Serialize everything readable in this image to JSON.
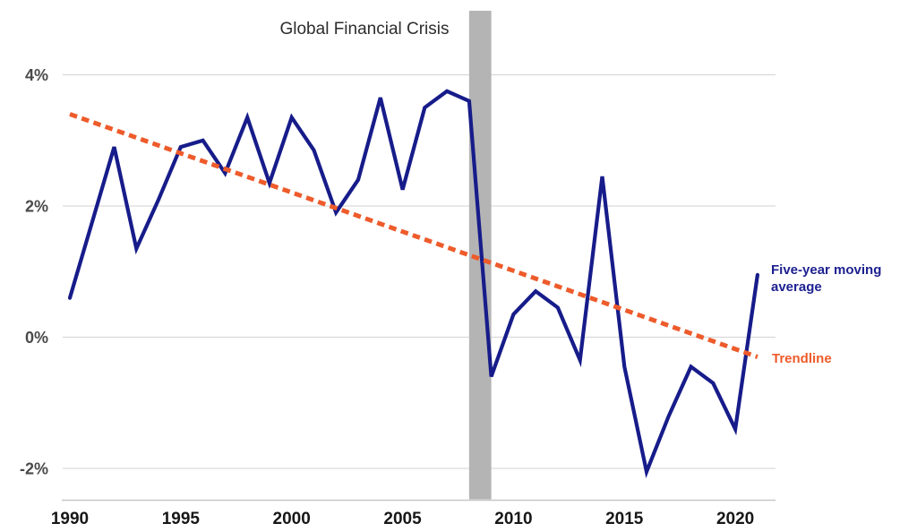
{
  "annotation": {
    "label": "Global Financial Crisis"
  },
  "legend": {
    "moving_average": {
      "lines": [
        "Five-year moving",
        "average"
      ],
      "color": "#1d2190"
    },
    "trendline": {
      "label": "Trendline",
      "color": "#ee5b2b"
    }
  },
  "axes": {
    "y_tick_labels": [
      "4%",
      "2%",
      "0%",
      "-2%"
    ],
    "x_tick_labels": [
      "1990",
      "1995",
      "2000",
      "2005",
      "2010",
      "2015",
      "2020"
    ]
  },
  "colors": {
    "line": "#171c8a",
    "trend": "#ee5b2b",
    "band": "#b4b4b4",
    "grid": "#d9d9d9",
    "axis": "#c7c7c7",
    "y_tick_text": "#4a4a4a",
    "x_tick_text": "#171717",
    "title_text": "#2d2d2d"
  },
  "chart_data": {
    "type": "line",
    "title": "Global Financial Crisis",
    "xlabel": "",
    "ylabel": "",
    "grid": true,
    "xlim": [
      1989.6,
      2021.9
    ],
    "ylim": [
      -2.5,
      5.0
    ],
    "x": [
      1990,
      1991,
      1992,
      1993,
      1994,
      1995,
      1996,
      1997,
      1998,
      1999,
      2000,
      2001,
      2002,
      2003,
      2004,
      2005,
      2006,
      2007,
      2008,
      2009,
      2010,
      2011,
      2012,
      2013,
      2014,
      2015,
      2016,
      2017,
      2018,
      2019,
      2020,
      2021
    ],
    "x_ticks": [
      1990,
      1995,
      2000,
      2005,
      2010,
      2015,
      2020
    ],
    "y_ticks": [
      {
        "label": "4%",
        "value": 4
      },
      {
        "label": "2%",
        "value": 2
      },
      {
        "label": "0%",
        "value": 0
      },
      {
        "label": "-2%",
        "value": -2
      }
    ],
    "series": [
      {
        "name": "Five-year moving average",
        "type": "line",
        "color": "#171c8a",
        "unit": "%",
        "values": [
          0.6,
          1.75,
          2.9,
          1.35,
          2.1,
          2.9,
          3.0,
          2.5,
          3.35,
          2.35,
          3.35,
          2.85,
          1.9,
          2.4,
          3.65,
          2.25,
          3.5,
          3.75,
          3.6,
          -0.6,
          0.35,
          0.7,
          0.45,
          -0.35,
          2.45,
          -0.45,
          -2.05,
          -1.2,
          -0.45,
          -0.7,
          -1.4,
          0.95
        ]
      },
      {
        "name": "Trendline",
        "type": "line",
        "style": "dashed",
        "color": "#ee5b2b",
        "unit": "%",
        "points": [
          {
            "x": 1990,
            "y": 3.4
          },
          {
            "x": 2021,
            "y": -0.3
          }
        ]
      }
    ],
    "annotations": [
      {
        "type": "vspan",
        "label": "Global Financial Crisis",
        "x_start": 2008,
        "x_end": 2009,
        "color": "#b4b4b4"
      }
    ],
    "legend_position": "right-of-line-ends"
  }
}
